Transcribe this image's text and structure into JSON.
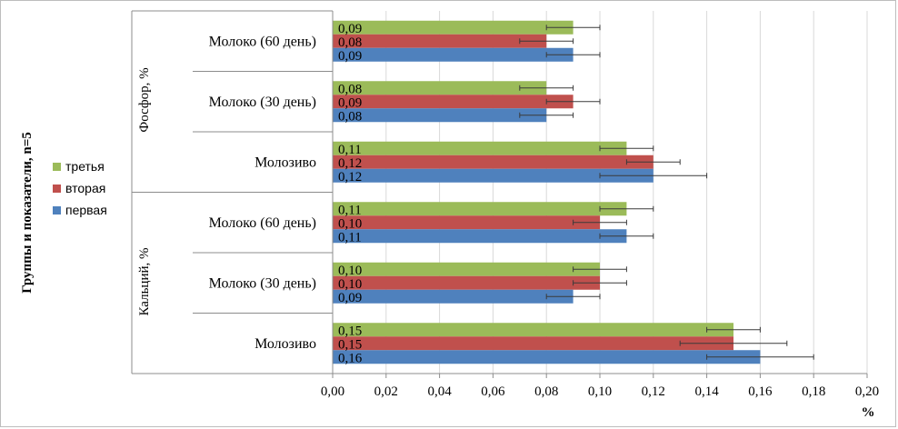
{
  "chart_data": {
    "type": "bar",
    "orientation": "horizontal",
    "ylabel": "Группы и показатели, n=5",
    "xlabel": "%",
    "xlim": [
      0,
      0.2
    ],
    "xticks": [
      "0,00",
      "0,02",
      "0,04",
      "0,06",
      "0,08",
      "0,10",
      "0,12",
      "0,14",
      "0,16",
      "0,18",
      "0,20"
    ],
    "groups": [
      "Фосфор, %",
      "Кальций, %"
    ],
    "categories": [
      {
        "label": "Молоко (60 день)",
        "group": 0
      },
      {
        "label": "Молоко (30 день)",
        "group": 0
      },
      {
        "label": "Молозиво",
        "group": 0
      },
      {
        "label": "Молоко (60 день)",
        "group": 1
      },
      {
        "label": "Молоко (30 день)",
        "group": 1
      },
      {
        "label": "Молозиво",
        "group": 1
      }
    ],
    "series": [
      {
        "name": "третья",
        "color": "#9bbb59",
        "values": [
          0.09,
          0.08,
          0.11,
          0.11,
          0.1,
          0.15
        ],
        "labels": [
          "0,09",
          "0,08",
          "0,11",
          "0,11",
          "0,10",
          "0,15"
        ],
        "errors": [
          0.01,
          0.01,
          0.01,
          0.01,
          0.01,
          0.01
        ]
      },
      {
        "name": "вторая",
        "color": "#c0504d",
        "values": [
          0.08,
          0.09,
          0.12,
          0.1,
          0.1,
          0.15
        ],
        "labels": [
          "0,08",
          "0,09",
          "0,12",
          "0,10",
          "0,10",
          "0,15"
        ],
        "errors": [
          0.01,
          0.01,
          0.01,
          0.01,
          0.01,
          0.02
        ]
      },
      {
        "name": "первая",
        "color": "#4f81bd",
        "values": [
          0.09,
          0.08,
          0.12,
          0.11,
          0.09,
          0.16
        ],
        "labels": [
          "0,09",
          "0,08",
          "0,12",
          "0,11",
          "0,09",
          "0,16"
        ],
        "errors": [
          0.01,
          0.01,
          0.02,
          0.01,
          0.01,
          0.02
        ]
      }
    ],
    "legend": {
      "position": "left",
      "order": [
        "третья",
        "вторая",
        "первая"
      ]
    },
    "grid": true
  }
}
